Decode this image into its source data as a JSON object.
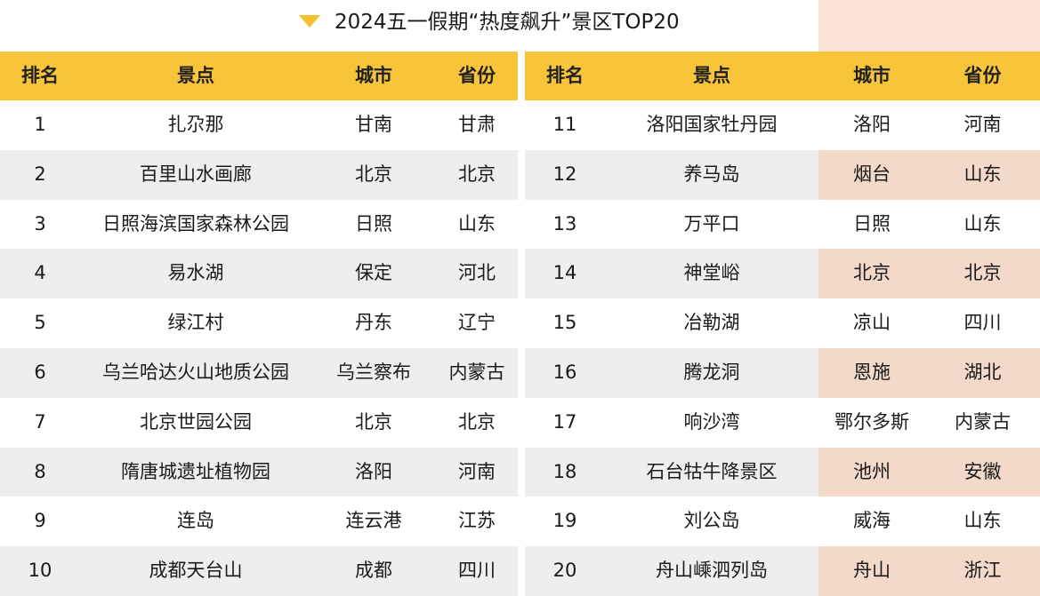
{
  "title": "2024五一假期“热度飙升”景区TOP20",
  "colors": {
    "header_bg": "#f8c43a",
    "alt_row": "#eeeeee",
    "highlight": "#f2d9c9",
    "triangle": "#f5be2c"
  },
  "icons": {
    "title_marker": "triangle-down-icon"
  },
  "headers": {
    "rank": "排名",
    "spot": "景点",
    "city": "城市",
    "province": "省份"
  },
  "left_rows": [
    {
      "rank": "1",
      "spot": "扎尕那",
      "city": "甘南",
      "province": "甘肃"
    },
    {
      "rank": "2",
      "spot": "百里山水画廊",
      "city": "北京",
      "province": "北京"
    },
    {
      "rank": "3",
      "spot": "日照海滨国家森林公园",
      "city": "日照",
      "province": "山东"
    },
    {
      "rank": "4",
      "spot": "易水湖",
      "city": "保定",
      "province": "河北"
    },
    {
      "rank": "5",
      "spot": "绿江村",
      "city": "丹东",
      "province": "辽宁"
    },
    {
      "rank": "6",
      "spot": "乌兰哈达火山地质公园",
      "city": "乌兰察布",
      "province": "内蒙古"
    },
    {
      "rank": "7",
      "spot": "北京世园公园",
      "city": "北京",
      "province": "北京"
    },
    {
      "rank": "8",
      "spot": "隋唐城遗址植物园",
      "city": "洛阳",
      "province": "河南"
    },
    {
      "rank": "9",
      "spot": "连岛",
      "city": "连云港",
      "province": "江苏"
    },
    {
      "rank": "10",
      "spot": "成都天台山",
      "city": "成都",
      "province": "四川"
    }
  ],
  "right_rows": [
    {
      "rank": "11",
      "spot": "洛阳国家牡丹园",
      "city": "洛阳",
      "province": "河南"
    },
    {
      "rank": "12",
      "spot": "养马岛",
      "city": "烟台",
      "province": "山东"
    },
    {
      "rank": "13",
      "spot": "万平口",
      "city": "日照",
      "province": "山东"
    },
    {
      "rank": "14",
      "spot": "神堂峪",
      "city": "北京",
      "province": "北京"
    },
    {
      "rank": "15",
      "spot": "冶勒湖",
      "city": "凉山",
      "province": "四川"
    },
    {
      "rank": "16",
      "spot": "腾龙洞",
      "city": "恩施",
      "province": "湖北"
    },
    {
      "rank": "17",
      "spot": "响沙湾",
      "city": "鄂尔多斯",
      "province": "内蒙古"
    },
    {
      "rank": "18",
      "spot": "石台牯牛降景区",
      "city": "池州",
      "province": "安徽"
    },
    {
      "rank": "19",
      "spot": "刘公岛",
      "city": "威海",
      "province": "山东"
    },
    {
      "rank": "20",
      "spot": "舟山嵊泗列岛",
      "city": "舟山",
      "province": "浙江"
    }
  ]
}
